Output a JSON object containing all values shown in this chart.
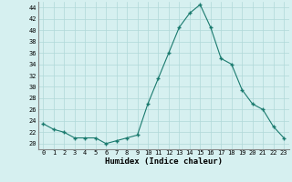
{
  "x": [
    0,
    1,
    2,
    3,
    4,
    5,
    6,
    7,
    8,
    9,
    10,
    11,
    12,
    13,
    14,
    15,
    16,
    17,
    18,
    19,
    20,
    21,
    22,
    23
  ],
  "y": [
    23.5,
    22.5,
    22.0,
    21.0,
    21.0,
    21.0,
    20.0,
    20.5,
    21.0,
    21.5,
    27.0,
    31.5,
    36.0,
    40.5,
    43.0,
    44.5,
    40.5,
    35.0,
    34.0,
    29.5,
    27.0,
    26.0,
    23.0,
    21.0
  ],
  "line_color": "#1a7a6e",
  "marker_color": "#1a7a6e",
  "bg_color": "#d6f0f0",
  "grid_color": "#b0d8d8",
  "xlabel": "Humidex (Indice chaleur)",
  "ylim": [
    19,
    45
  ],
  "xlim": [
    -0.5,
    23.5
  ],
  "yticks": [
    20,
    22,
    24,
    26,
    28,
    30,
    32,
    34,
    36,
    38,
    40,
    42,
    44
  ],
  "xticks": [
    0,
    1,
    2,
    3,
    4,
    5,
    6,
    7,
    8,
    9,
    10,
    11,
    12,
    13,
    14,
    15,
    16,
    17,
    18,
    19,
    20,
    21,
    22,
    23
  ],
  "tick_fontsize": 5.0,
  "xlabel_fontsize": 6.5
}
